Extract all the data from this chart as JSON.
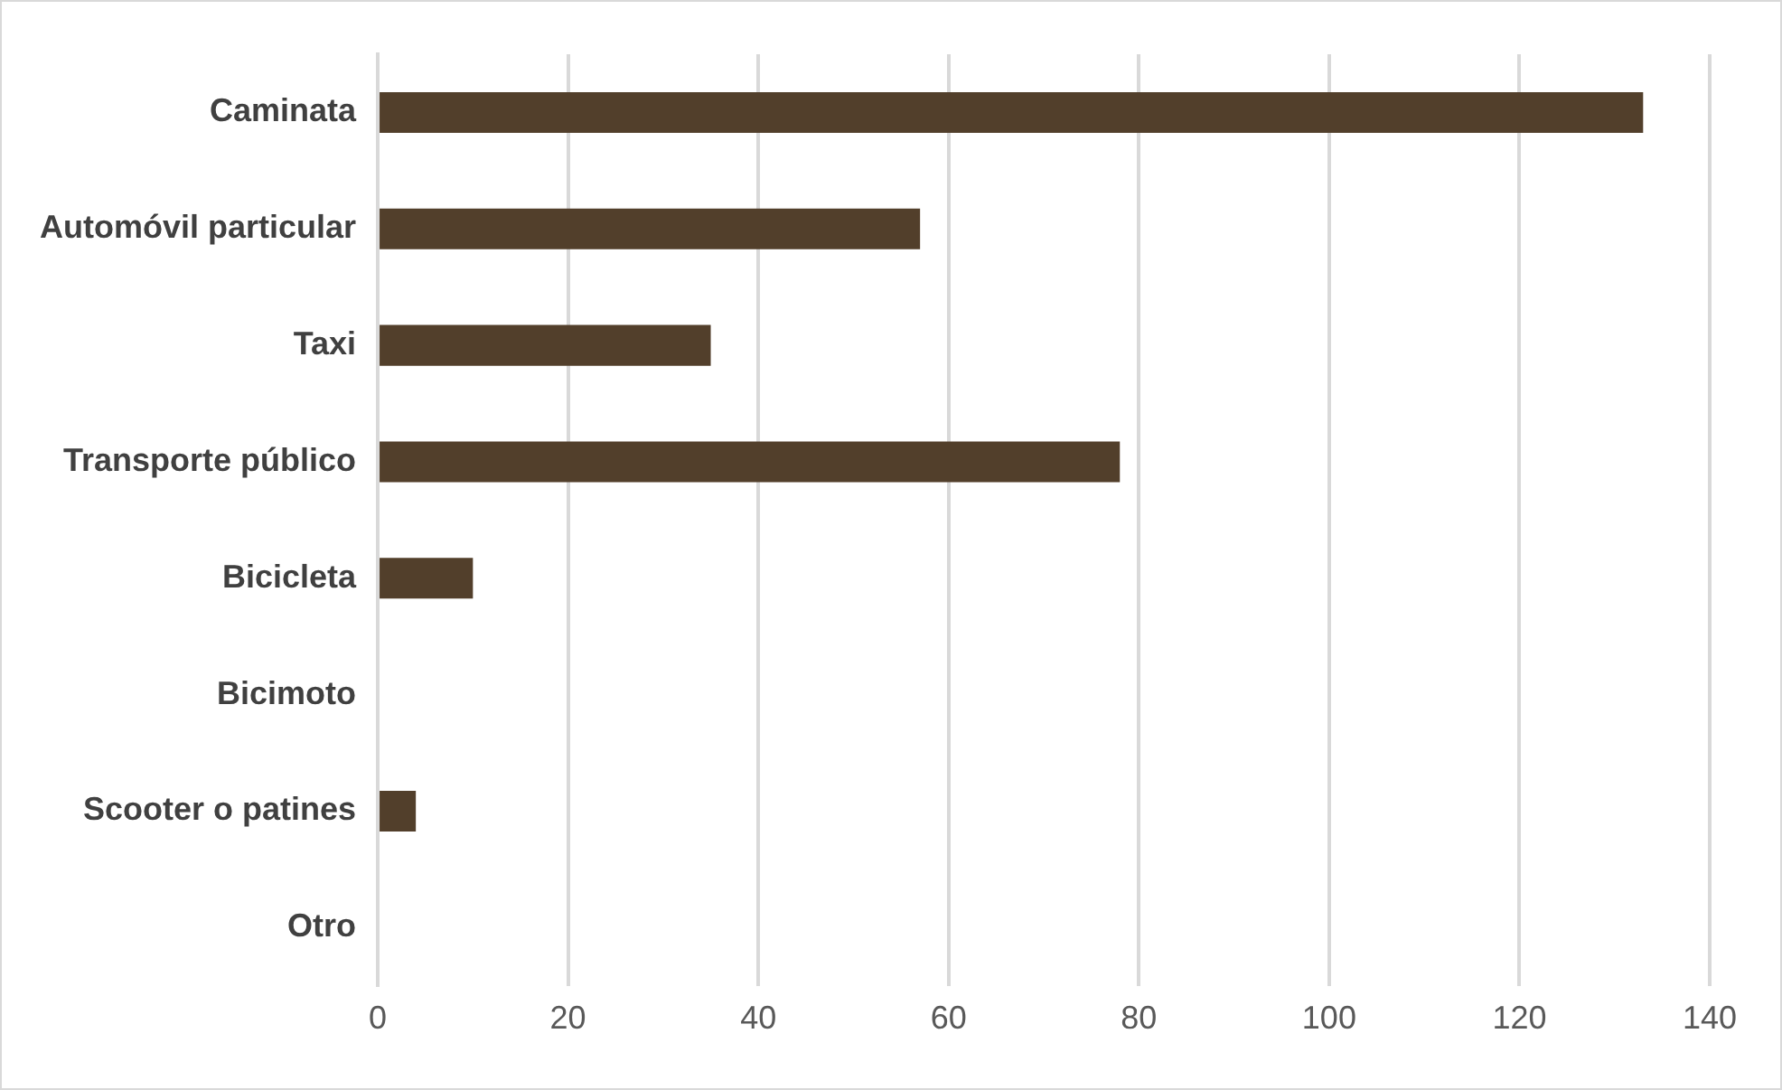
{
  "chart_data": {
    "type": "bar",
    "orientation": "horizontal",
    "categories": [
      "Caminata",
      "Automóvil particular",
      "Taxi",
      "Transporte público",
      "Bicicleta",
      "Bicimoto",
      "Scooter o patines",
      "Otro"
    ],
    "values": [
      133,
      57,
      35,
      78,
      10,
      0,
      4,
      0
    ],
    "color": "#523f2b",
    "xlim": [
      0,
      140
    ],
    "xticks": [
      0,
      20,
      40,
      60,
      80,
      100,
      120,
      140
    ],
    "grid": "x",
    "legend": false
  }
}
